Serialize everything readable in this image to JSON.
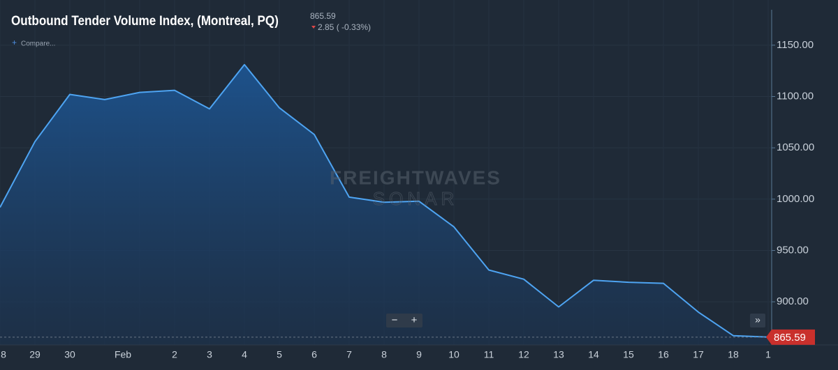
{
  "chart_data": {
    "type": "area",
    "title": "Outbound Tender Volume Index, (Montreal, PQ)",
    "change_text": "2.85 ( -0.33%)",
    "compare_label": "Compare...",
    "watermark": [
      "FREIGHTWAVES",
      "SONAR"
    ],
    "zoom_buttons": [
      "−",
      "+",
      "»"
    ],
    "categories": [
      "8",
      "29",
      "30",
      null,
      "Feb",
      "2",
      "3",
      "4",
      "5",
      "6",
      "7",
      "8",
      "9",
      "10",
      "11",
      "12",
      "13",
      "14",
      "15",
      "16",
      "17",
      "18",
      "1"
    ],
    "values": [
      992,
      1056,
      1102,
      1097,
      1104,
      1106,
      1088,
      1131,
      1089,
      1063,
      1002,
      997,
      998,
      973,
      931,
      922,
      895,
      921,
      919,
      918,
      890,
      867,
      865.59
    ],
    "color": "#4ea4f2",
    "ylim": [
      858,
      1194
    ],
    "yticks": [
      {
        "value": 900,
        "label": "900.00"
      },
      {
        "value": 950,
        "label": "950.00"
      },
      {
        "value": 1000,
        "label": "1000.00"
      },
      {
        "value": 1050,
        "label": "1050.00"
      },
      {
        "value": 1100,
        "label": "1100.00"
      },
      {
        "value": 1150,
        "label": "1150.00"
      }
    ],
    "grid": true
  }
}
